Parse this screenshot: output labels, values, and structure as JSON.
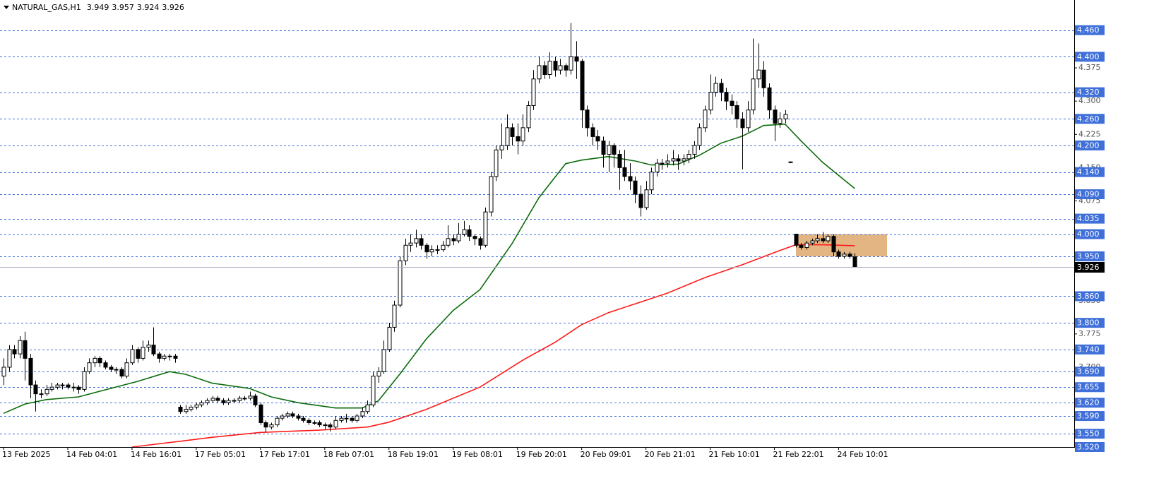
{
  "chart_data": {
    "type": "candlestick",
    "title": "NATURAL_GAS,H1",
    "ylim": [
      3.52,
      4.528
    ],
    "yticks": [
      4.375,
      {
        "value": 4.3,
        "label": "4.300"
      },
      4.225,
      {
        "value": 4.15,
        "label": "4.150"
      },
      4.075,
      {
        "value": 3.85,
        "label": "3.850"
      },
      3.775,
      {
        "value": 3.7,
        "label": "3.700"
      }
    ],
    "categories": [
      "13 Feb 2025",
      null,
      null,
      null,
      null,
      null,
      null,
      null,
      null,
      null,
      null,
      null,
      "14 Feb 04:01",
      null,
      null,
      null,
      null,
      null,
      null,
      null,
      null,
      null,
      null,
      null,
      "14 Feb 16:01",
      null,
      null,
      null,
      null,
      null,
      null,
      null,
      null,
      null,
      null,
      null,
      "17 Feb 05:01",
      null,
      null,
      null,
      null,
      null,
      null,
      null,
      null,
      null,
      null,
      null,
      "17 Feb 17:01",
      null,
      null,
      null,
      null,
      null,
      null,
      null,
      null,
      null,
      null,
      null,
      "18 Feb 07:01",
      null,
      null,
      null,
      null,
      null,
      null,
      null,
      null,
      null,
      null,
      null,
      "18 Feb 19:01",
      null,
      null,
      null,
      null,
      null,
      null,
      null,
      null,
      null,
      null,
      null,
      "19 Feb 08:01",
      null,
      null,
      null,
      null,
      null,
      null,
      null,
      null,
      null,
      null,
      null,
      "19 Feb 20:01",
      null,
      null,
      null,
      null,
      null,
      null,
      null,
      null,
      null,
      null,
      null,
      "20 Feb 09:01",
      null,
      null,
      null,
      null,
      null,
      null,
      null,
      null,
      null,
      null,
      null,
      "20 Feb 21:01",
      null,
      null,
      null,
      null,
      null,
      null,
      null,
      null,
      null,
      null,
      null,
      "21 Feb 10:01",
      null,
      null,
      null,
      null,
      null,
      null,
      null,
      null,
      null,
      null,
      null,
      "21 Feb 22:01",
      null,
      null,
      null,
      null,
      null,
      null,
      null,
      null,
      null,
      null,
      null,
      "24 Feb 10:01",
      null,
      null,
      null
    ],
    "ohlc": [
      [
        3.68,
        3.72,
        3.66,
        3.7
      ],
      [
        3.7,
        3.75,
        3.69,
        3.74
      ],
      [
        3.74,
        3.75,
        3.72,
        3.73
      ],
      [
        3.73,
        3.77,
        3.72,
        3.76
      ],
      [
        3.76,
        3.78,
        3.67,
        3.72
      ],
      [
        3.72,
        3.73,
        3.63,
        3.66
      ],
      [
        3.66,
        3.67,
        3.6,
        3.64
      ],
      [
        3.64,
        3.65,
        3.63,
        3.64
      ],
      [
        3.64,
        3.66,
        3.635,
        3.65
      ],
      [
        3.65,
        3.665,
        3.645,
        3.655
      ],
      [
        3.655,
        3.665,
        3.65,
        3.66
      ],
      [
        3.66,
        3.665,
        3.65,
        3.66
      ],
      [
        3.66,
        3.665,
        3.65,
        3.655
      ],
      [
        3.655,
        3.665,
        3.645,
        3.655
      ],
      [
        3.655,
        3.66,
        3.64,
        3.65
      ],
      [
        3.65,
        3.7,
        3.645,
        3.69
      ],
      [
        3.69,
        3.72,
        3.685,
        3.71
      ],
      [
        3.71,
        3.725,
        3.7,
        3.72
      ],
      [
        3.72,
        3.725,
        3.7,
        3.71
      ],
      [
        3.71,
        3.715,
        3.695,
        3.7
      ],
      [
        3.7,
        3.705,
        3.69,
        3.695
      ],
      [
        3.695,
        3.7,
        3.685,
        3.695
      ],
      [
        3.695,
        3.7,
        3.675,
        3.68
      ],
      [
        3.68,
        3.72,
        3.675,
        3.71
      ],
      [
        3.71,
        3.75,
        3.705,
        3.74
      ],
      [
        3.74,
        3.745,
        3.71,
        3.72
      ],
      [
        3.72,
        3.76,
        3.715,
        3.745
      ],
      [
        3.745,
        3.76,
        3.735,
        3.75
      ],
      [
        3.75,
        3.79,
        3.725,
        3.73
      ],
      [
        3.73,
        3.735,
        3.71,
        3.72
      ],
      [
        3.72,
        3.73,
        3.715,
        3.725
      ],
      [
        3.725,
        3.73,
        3.715,
        3.725
      ],
      [
        3.725,
        3.73,
        3.71,
        3.72
      ],
      [
        3.61,
        3.615,
        3.595,
        3.6
      ],
      [
        3.6,
        3.615,
        3.595,
        3.605
      ],
      [
        3.605,
        3.615,
        3.6,
        3.61
      ],
      [
        3.61,
        3.62,
        3.605,
        3.615
      ],
      [
        3.615,
        3.625,
        3.61,
        3.62
      ],
      [
        3.62,
        3.63,
        3.615,
        3.625
      ],
      [
        3.625,
        3.635,
        3.62,
        3.63
      ],
      [
        3.63,
        3.635,
        3.62,
        3.625
      ],
      [
        3.625,
        3.63,
        3.615,
        3.62
      ],
      [
        3.62,
        3.63,
        3.615,
        3.625
      ],
      [
        3.625,
        3.63,
        3.62,
        3.625
      ],
      [
        3.625,
        3.635,
        3.62,
        3.63
      ],
      [
        3.63,
        3.635,
        3.625,
        3.63
      ],
      [
        3.63,
        3.645,
        3.625,
        3.635
      ],
      [
        3.635,
        3.64,
        3.61,
        3.615
      ],
      [
        3.615,
        3.62,
        3.57,
        3.575
      ],
      [
        3.575,
        3.58,
        3.553,
        3.565
      ],
      [
        3.565,
        3.575,
        3.56,
        3.57
      ],
      [
        3.57,
        3.59,
        3.565,
        3.585
      ],
      [
        3.585,
        3.595,
        3.58,
        3.59
      ],
      [
        3.59,
        3.6,
        3.585,
        3.595
      ],
      [
        3.595,
        3.6,
        3.585,
        3.59
      ],
      [
        3.59,
        3.595,
        3.58,
        3.585
      ],
      [
        3.585,
        3.59,
        3.575,
        3.58
      ],
      [
        3.58,
        3.585,
        3.57,
        3.575
      ],
      [
        3.575,
        3.58,
        3.57,
        3.575
      ],
      [
        3.575,
        3.58,
        3.565,
        3.57
      ],
      [
        3.57,
        3.575,
        3.56,
        3.57
      ],
      [
        3.57,
        3.575,
        3.555,
        3.565
      ],
      [
        3.565,
        3.59,
        3.56,
        3.58
      ],
      [
        3.58,
        3.59,
        3.575,
        3.585
      ],
      [
        3.585,
        3.595,
        3.575,
        3.585
      ],
      [
        3.585,
        3.59,
        3.575,
        3.58
      ],
      [
        3.58,
        3.595,
        3.575,
        3.59
      ],
      [
        3.59,
        3.61,
        3.585,
        3.6
      ],
      [
        3.6,
        3.625,
        3.595,
        3.615
      ],
      [
        3.615,
        3.69,
        3.61,
        3.68
      ],
      [
        3.68,
        3.7,
        3.665,
        3.69
      ],
      [
        3.69,
        3.76,
        3.685,
        3.74
      ],
      [
        3.74,
        3.8,
        3.735,
        3.79
      ],
      [
        3.79,
        3.85,
        3.78,
        3.84
      ],
      [
        3.84,
        3.95,
        3.835,
        3.94
      ],
      [
        3.94,
        3.99,
        3.93,
        3.975
      ],
      [
        3.975,
        4.0,
        3.96,
        3.98
      ],
      [
        3.98,
        4.01,
        3.97,
        3.99
      ],
      [
        3.99,
        4.0,
        3.965,
        3.975
      ],
      [
        3.975,
        3.98,
        3.945,
        3.96
      ],
      [
        3.96,
        3.975,
        3.95,
        3.965
      ],
      [
        3.965,
        3.975,
        3.955,
        3.965
      ],
      [
        3.965,
        3.985,
        3.96,
        3.975
      ],
      [
        3.975,
        4.02,
        3.97,
        3.99
      ],
      [
        3.99,
        4.0,
        3.975,
        3.985
      ],
      [
        3.985,
        4.025,
        3.98,
        4.0
      ],
      [
        4.0,
        4.03,
        3.995,
        4.01
      ],
      [
        4.01,
        4.02,
        3.985,
        3.995
      ],
      [
        3.995,
        4.0,
        3.975,
        3.99
      ],
      [
        3.99,
        3.995,
        3.965,
        3.975
      ],
      [
        3.975,
        4.06,
        3.97,
        4.05
      ],
      [
        4.05,
        4.14,
        4.04,
        4.13
      ],
      [
        4.13,
        4.2,
        4.12,
        4.19
      ],
      [
        4.19,
        4.25,
        4.17,
        4.2
      ],
      [
        4.2,
        4.27,
        4.19,
        4.24
      ],
      [
        4.24,
        4.25,
        4.2,
        4.22
      ],
      [
        4.22,
        4.25,
        4.18,
        4.21
      ],
      [
        4.21,
        4.27,
        4.2,
        4.24
      ],
      [
        4.24,
        4.3,
        4.23,
        4.29
      ],
      [
        4.29,
        4.37,
        4.28,
        4.35
      ],
      [
        4.35,
        4.4,
        4.34,
        4.38
      ],
      [
        4.38,
        4.39,
        4.35,
        4.36
      ],
      [
        4.36,
        4.41,
        4.35,
        4.39
      ],
      [
        4.39,
        4.4,
        4.355,
        4.37
      ],
      [
        4.37,
        4.395,
        4.36,
        4.38
      ],
      [
        4.38,
        4.385,
        4.355,
        4.37
      ],
      [
        4.37,
        4.476,
        4.36,
        4.4
      ],
      [
        4.4,
        4.435,
        4.35,
        4.39
      ],
      [
        4.39,
        4.395,
        4.24,
        4.28
      ],
      [
        4.28,
        4.29,
        4.22,
        4.24
      ],
      [
        4.24,
        4.25,
        4.2,
        4.22
      ],
      [
        4.22,
        4.235,
        4.19,
        4.21
      ],
      [
        4.21,
        4.22,
        4.15,
        4.18
      ],
      [
        4.18,
        4.21,
        4.14,
        4.2
      ],
      [
        4.2,
        4.205,
        4.15,
        4.18
      ],
      [
        4.18,
        4.19,
        4.1,
        4.15
      ],
      [
        4.15,
        4.19,
        4.12,
        4.13
      ],
      [
        4.13,
        4.16,
        4.1,
        4.12
      ],
      [
        4.12,
        4.13,
        4.07,
        4.09
      ],
      [
        4.09,
        4.11,
        4.04,
        4.06
      ],
      [
        4.06,
        4.12,
        4.055,
        4.1
      ],
      [
        4.1,
        4.15,
        4.09,
        4.14
      ],
      [
        4.14,
        4.17,
        4.13,
        4.16
      ],
      [
        4.16,
        4.17,
        4.145,
        4.16
      ],
      [
        4.16,
        4.18,
        4.15,
        4.165
      ],
      [
        4.165,
        4.19,
        4.155,
        4.17
      ],
      [
        4.17,
        4.18,
        4.145,
        4.165
      ],
      [
        4.165,
        4.18,
        4.155,
        4.17
      ],
      [
        4.17,
        4.19,
        4.16,
        4.18
      ],
      [
        4.18,
        4.21,
        4.17,
        4.2
      ],
      [
        4.2,
        4.25,
        4.19,
        4.24
      ],
      [
        4.24,
        4.29,
        4.23,
        4.28
      ],
      [
        4.28,
        4.36,
        4.27,
        4.32
      ],
      [
        4.32,
        4.355,
        4.31,
        4.34
      ],
      [
        4.34,
        4.35,
        4.3,
        4.32
      ],
      [
        4.32,
        4.33,
        4.28,
        4.3
      ],
      [
        4.3,
        4.315,
        4.27,
        4.29
      ],
      [
        4.29,
        4.3,
        4.24,
        4.26
      ],
      [
        4.26,
        4.275,
        4.146,
        4.24
      ],
      [
        4.24,
        4.3,
        4.23,
        4.28
      ],
      [
        4.28,
        4.441,
        4.27,
        4.35
      ],
      [
        4.35,
        4.43,
        4.33,
        4.37
      ],
      [
        4.37,
        4.39,
        4.31,
        4.33
      ],
      [
        4.33,
        4.34,
        4.26,
        4.28
      ],
      [
        4.28,
        4.29,
        4.21,
        4.25
      ],
      [
        4.25,
        4.275,
        4.24,
        4.26
      ],
      [
        4.26,
        4.28,
        4.25,
        4.27
      ],
      [
        4.163,
        4.163,
        4.16,
        4.163
      ],
      [
        4.0,
        4.0,
        3.97,
        3.975
      ],
      [
        3.975,
        3.98,
        3.965,
        3.97
      ],
      [
        3.97,
        3.985,
        3.965,
        3.98
      ],
      [
        3.98,
        3.99,
        3.975,
        3.985
      ],
      [
        3.985,
        4.0,
        3.98,
        3.99
      ],
      [
        3.99,
        4.005,
        3.98,
        3.985
      ],
      [
        3.985,
        4.0,
        3.98,
        3.995
      ],
      [
        3.995,
        4.0,
        3.95,
        3.96
      ],
      [
        3.96,
        3.965,
        3.945,
        3.95
      ],
      [
        3.95,
        3.96,
        3.945,
        3.955
      ],
      [
        3.955,
        3.96,
        3.945,
        3.95
      ],
      [
        3.949,
        3.957,
        3.924,
        3.926
      ]
    ],
    "ma": [
      {
        "color": "#0b6b0b",
        "x": [
          0,
          4,
          8,
          14,
          19,
          25,
          31,
          34,
          39,
          46,
          50,
          55,
          62,
          67,
          70,
          74,
          79,
          84,
          89,
          95,
          100,
          105,
          108,
          113,
          118,
          121,
          126,
          130,
          134,
          138,
          142,
          146,
          149,
          153,
          159
        ],
        "values": [
          3.596,
          3.617,
          3.627,
          3.633,
          3.649,
          3.668,
          3.69,
          3.684,
          3.664,
          3.652,
          3.633,
          3.62,
          3.608,
          3.608,
          3.624,
          3.684,
          3.764,
          3.828,
          3.875,
          3.979,
          4.082,
          4.159,
          4.167,
          4.175,
          4.165,
          4.156,
          4.158,
          4.178,
          4.205,
          4.221,
          4.245,
          4.248,
          4.21,
          4.162,
          4.103
        ]
      },
      {
        "color": "#ff1a1a",
        "x": [
          24,
          33,
          39,
          48,
          59,
          68,
          72,
          79,
          89,
          97,
          103,
          108,
          113,
          118,
          124,
          131,
          138,
          145,
          148,
          153,
          159
        ],
        "values": [
          3.52,
          3.533,
          3.542,
          3.553,
          3.558,
          3.565,
          3.576,
          3.605,
          3.655,
          3.716,
          3.756,
          3.796,
          3.823,
          3.843,
          3.867,
          3.902,
          3.931,
          3.963,
          3.976,
          3.976,
          3.974
        ]
      }
    ],
    "levels": [
      {
        "value": 4.46,
        "label": "4.460"
      },
      {
        "value": 4.4,
        "label": "4.400"
      },
      {
        "value": 4.32,
        "label": "4.320"
      },
      {
        "value": 4.26,
        "label": "4.260"
      },
      {
        "value": 4.2,
        "label": "4.200"
      },
      {
        "value": 4.14,
        "label": "4.140"
      },
      {
        "value": 4.09,
        "label": "4.090"
      },
      4.035,
      {
        "value": 4.0,
        "label": "4.000"
      },
      {
        "value": 3.95,
        "label": "3.950"
      },
      {
        "value": 3.86,
        "label": "3.860"
      },
      {
        "value": 3.8,
        "label": "3.800"
      },
      {
        "value": 3.74,
        "label": "3.740"
      },
      {
        "value": 3.69,
        "label": "3.690"
      },
      3.655,
      {
        "value": 3.62,
        "label": "3.620"
      },
      {
        "value": 3.59,
        "label": "3.590"
      },
      {
        "value": 3.55,
        "label": "3.550"
      },
      {
        "value": 3.52,
        "label": "3.520"
      }
    ],
    "level_color": "#3f6fd8",
    "zone": [
      3.95,
      4.0
    ],
    "zone_color": "#e2b582"
  }
}
